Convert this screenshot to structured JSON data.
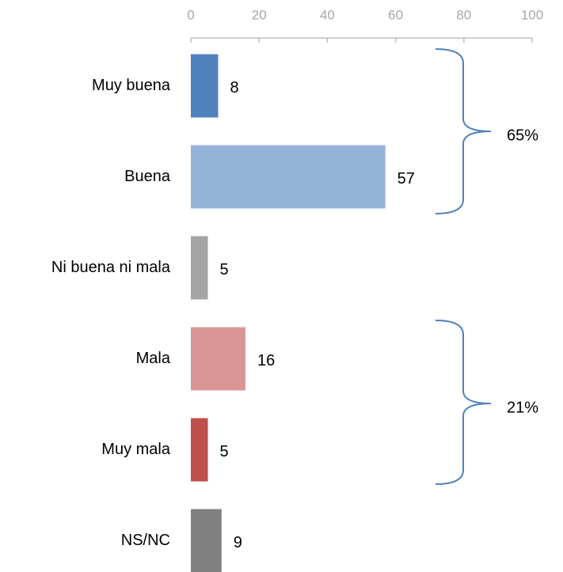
{
  "chart_data": {
    "type": "bar",
    "orientation": "horizontal",
    "categories": [
      "Muy buena",
      "Buena",
      "Ni buena ni mala",
      "Mala",
      "Muy mala",
      "NS/NC"
    ],
    "values": [
      8,
      57,
      5,
      16,
      5,
      9
    ],
    "colors": [
      "#4f81bd",
      "#95b3d7",
      "#a5a5a5",
      "#d99694",
      "#c0504d",
      "#808080"
    ],
    "xlim": [
      0,
      100
    ],
    "xticks": [
      0,
      20,
      40,
      60,
      80,
      100
    ],
    "annotations": [
      "65%",
      "21%"
    ]
  }
}
